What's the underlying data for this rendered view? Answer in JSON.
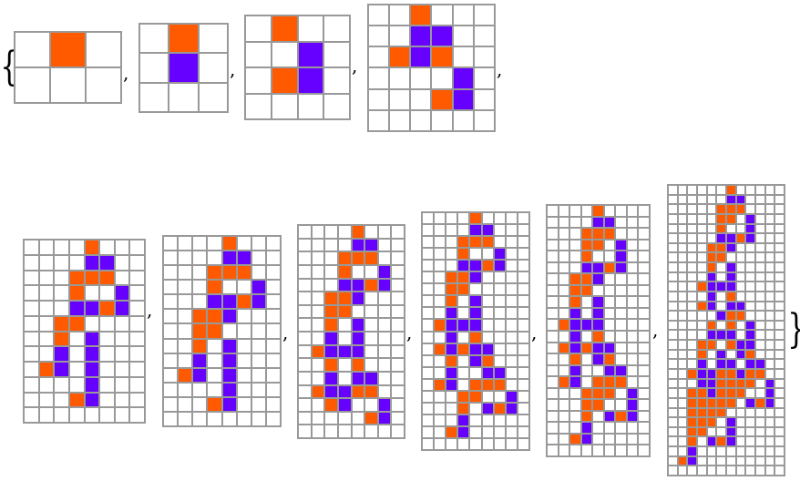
{
  "colors": {
    "orange": "#FF5A00",
    "purple": "#6600FF",
    "empty": "#FFFFFF",
    "grid_lines": "#999999"
  },
  "symbols": {
    "open_brace": "{",
    "close_brace": "}",
    "separator": ","
  },
  "legend_codes": {
    "O": "orange",
    "P": "purple",
    ".": "empty"
  },
  "grids": [
    {
      "rows": [
        ".O.",
        "..."
      ]
    },
    {
      "rows": [
        ".O.",
        ".P.",
        "..."
      ]
    },
    {
      "rows": [
        ".O..",
        "..P.",
        ".OP.",
        "...."
      ]
    },
    {
      "rows": [
        "..O...",
        "..PP..",
        ".OPO..",
        "....P.",
        "...OP.",
        "......"
      ]
    },
    {
      "rows": [
        "....O...",
        "....PP..",
        "...OOO..",
        "...O..P.",
        "...PPOP.",
        "..OO....",
        "..O.P...",
        "..P.P...",
        ".OP.P...",
        "....P...",
        "...OP...",
        "........"
      ]
    },
    {
      "rows": [
        "....O...",
        "....PP..",
        "...OOO..",
        "...O..P.",
        "...PPOP.",
        "..OOP...",
        "..OO....",
        "..O.P...",
        "..P.P...",
        ".OP.P...",
        "....P...",
        "...OP...",
        "........"
      ]
    },
    {
      "rows": [
        "....O...",
        "....PP..",
        "...OOO..",
        "...O..P.",
        "...PPOP.",
        "..OOP...",
        "..OO....",
        "..O.P...",
        "..P.P...",
        ".OPPP...",
        "..O.O...",
        "..P.PP..",
        ".OPPOO..",
        "..OP..P.",
        ".....OP.",
        "........"
      ]
    },
    {
      "rows": [
        "....O....",
        "....PP...",
        "...OOO...",
        "...O..P..",
        "...PPOP..",
        "..OOP....",
        "..OO.....",
        "..O.P....",
        "..P.P....",
        ".OPPP....",
        "..P.O....",
        ".OPOPP...",
        "..O.PO...",
        "..P..PP..",
        ".OP.OOO..",
        "...OO..P.",
        "...O.POP.",
        "...P.....",
        "..OP.....",
        "........."
      ]
    },
    {
      "rows": [
        "....O....",
        "....PP...",
        "...OOO...",
        "...OO.P..",
        "...O..P..",
        "...PPOP..",
        "..OOP....",
        "..OO.....",
        "..O.P....",
        "..P.P....",
        ".OPPP....",
        "..P.O....",
        ".OPOPP...",
        "..O.PO...",
        "..P..PP..",
        ".OP.OOO..",
        "...OOO.P.",
        "...OO..P.",
        "...O.POP.",
        "...P.....",
        "..OP.....",
        "........."
      ]
    },
    {
      "rows": [
        "......O.....",
        "......PP....",
        ".....OOO....",
        ".....OO.P...",
        ".....O..P...",
        ".....PPOP...",
        "....OOP.....",
        "....OO......",
        "....O.P.....",
        "....P.P.....",
        "...OPPP.....",
        "....P.O.....",
        "...OP.PP....",
        ".....POO....",
        "....O.O.P...",
        "....PPP.P...",
        "...OO.OPP...",
        "...O.P.PO...",
        "...P.PP.PP..",
        "..OPPOOPOO..",
        "...PPOOOO.P.",
        "..OOPOOO..P.",
        "..OOOOO.POP.",
        "..OOOO......",
        "..OOO.P.....",
        "..OO..P.....",
        "..O.POP.....",
        "..P.........",
        ".OP.........",
        "............"
      ]
    }
  ]
}
